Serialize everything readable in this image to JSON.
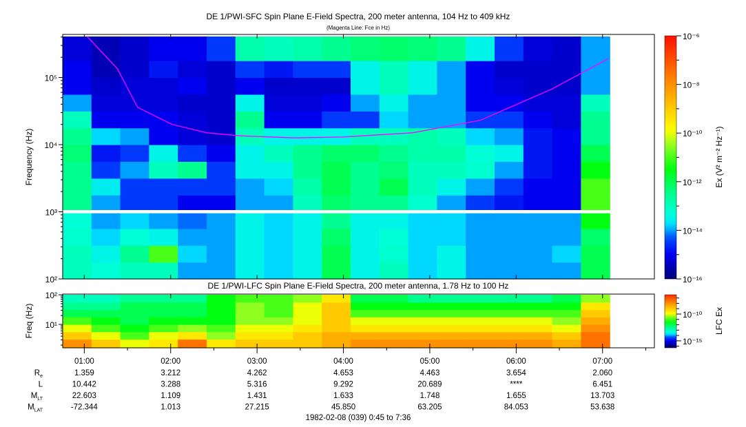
{
  "chart_data": [
    {
      "type": "heatmap",
      "title": "DE 1/PWI-SFC  Spin Plane E-Field Spectra, 200 meter antenna, 104 Hz to 409 kHz",
      "subtitle": "(Magenta Line: Fce in Hz)",
      "ylabel": "Frequency (Hz)",
      "yscale": "log",
      "ylim": [
        100,
        409000
      ],
      "y_tick_labels": [
        "10²",
        "10³",
        "10⁴",
        "10⁵"
      ],
      "y_ticks": [
        100,
        1000,
        10000,
        100000
      ],
      "data_gap_hz": [
        950,
        1060
      ],
      "xlim": [
        "0:45",
        "7:36"
      ],
      "time_bins_start": [
        "0:45",
        "1:05",
        "1:25",
        "1:45",
        "2:05",
        "2:25",
        "2:45",
        "3:05",
        "3:25",
        "3:45",
        "4:05",
        "4:25",
        "4:45",
        "5:05",
        "5:25",
        "5:45",
        "6:05",
        "6:25",
        "6:45"
      ],
      "time_bin_minutes": 20,
      "log10_freq_bin_edges": [
        2.0,
        2.25,
        2.5,
        2.75,
        3.0,
        3.25,
        3.5,
        3.75,
        4.0,
        4.25,
        4.5,
        4.75,
        5.0,
        5.25,
        5.61
      ],
      "log10_ex_values": [
        [
          -13,
          -13,
          -13.2,
          -13.3,
          -12.5,
          -12.5,
          -12.5,
          -12.3,
          -12.5,
          -13,
          -14,
          -15,
          -15,
          -15.2
        ],
        [
          -13.3,
          -13.5,
          -13.8,
          -14,
          -14,
          -13.6,
          -14.5,
          -14.8,
          -13.8,
          -15,
          -15.2,
          -15.3,
          -15.5,
          -15.5
        ],
        [
          -13,
          -12.5,
          -13.3,
          -13.8,
          -14.5,
          -14.5,
          -14,
          -14.5,
          -14,
          -15,
          -15.2,
          -15.2,
          -15.3,
          -15.3
        ],
        [
          -13,
          -11,
          -13.5,
          -14,
          -14.5,
          -14.5,
          -13,
          -13.5,
          -15,
          -15,
          -15.2,
          -15.2,
          -14.8,
          -15
        ],
        [
          -14,
          -13.8,
          -14,
          -14.2,
          -15,
          -14.5,
          -12.5,
          -14.5,
          -15.2,
          -15.2,
          -15.3,
          -15,
          -15.2,
          -15
        ],
        [
          -14,
          -14,
          -14,
          -14,
          -15,
          -14.5,
          -14.5,
          -15,
          -15.3,
          -15.3,
          -15.3,
          -15.3,
          -15.3,
          -14.5
        ],
        [
          -13.5,
          -13.5,
          -13.5,
          -13.5,
          -14,
          -14,
          -13.5,
          -13.5,
          -13,
          -12.5,
          -13.5,
          -15,
          -14.5,
          -12.8
        ],
        [
          -13.8,
          -13.8,
          -13.8,
          -13.8,
          -14,
          -13.8,
          -13.5,
          -13,
          -13.5,
          -15,
          -15.2,
          -15.3,
          -14.8,
          -13
        ],
        [
          -13.5,
          -13.5,
          -13.5,
          -13.5,
          -13,
          -12.8,
          -12.5,
          -12.5,
          -13.5,
          -15,
          -15.2,
          -15.3,
          -14.5,
          -12.8
        ],
        [
          -12,
          -12,
          -12.2,
          -12.5,
          -12.2,
          -12,
          -12,
          -12.2,
          -13.5,
          -14.5,
          -15,
          -15.3,
          -14.5,
          -12.5
        ],
        [
          -13.5,
          -13.5,
          -13.5,
          -13.5,
          -12.5,
          -12.5,
          -12.5,
          -12.2,
          -13,
          -14.5,
          -14,
          -13.5,
          -13.5,
          -12.3
        ],
        [
          -13,
          -13.2,
          -13.3,
          -13.5,
          -12.5,
          -12,
          -12.3,
          -12.5,
          -13,
          -13.8,
          -13.5,
          -13,
          -13,
          -12.2
        ],
        [
          -13.8,
          -13.8,
          -13.8,
          -13.8,
          -13.2,
          -13,
          -13,
          -12.8,
          -12.8,
          -14,
          -14,
          -13.5,
          -13.5,
          -12.3
        ],
        [
          -13.5,
          -13.5,
          -13.8,
          -13.8,
          -14,
          -13.5,
          -13,
          -12.8,
          -13,
          -14,
          -14,
          -14,
          -14,
          -12.5
        ],
        [
          -14,
          -14,
          -14,
          -14,
          -14.5,
          -14,
          -13.2,
          -13.3,
          -13.8,
          -14.5,
          -15,
          -15,
          -15,
          -13.5
        ],
        [
          -14,
          -14,
          -14,
          -14,
          -14.8,
          -14.5,
          -14,
          -13.5,
          -14,
          -14.5,
          -15,
          -15.2,
          -15.3,
          -14.5
        ],
        [
          -14,
          -14,
          -14,
          -14,
          -15,
          -15,
          -14.8,
          -14.8,
          -14.8,
          -15,
          -15.2,
          -15.3,
          -15.3,
          -15.2
        ],
        [
          -14,
          -13.8,
          -14,
          -14,
          -15,
          -15,
          -15,
          -15,
          -15,
          -15.2,
          -15.2,
          -15.3,
          -15.3,
          -15.3
        ],
        [
          -12,
          -12,
          -12.2,
          -11.5,
          -11,
          -11,
          -11.5,
          -12,
          -12.5,
          -12.5,
          -13,
          -14,
          -14,
          -14
        ]
      ],
      "fce_line": {
        "name": "Fce",
        "color": "#ff00ff",
        "points": [
          [
            "1:02",
            409000
          ],
          [
            "1:23",
            135000
          ],
          [
            "1:37",
            36000
          ],
          [
            "2:01",
            20000
          ],
          [
            "2:25",
            15000
          ],
          [
            "2:49",
            13500
          ],
          [
            "3:26",
            12600
          ],
          [
            "4:00",
            13000
          ],
          [
            "4:48",
            15000
          ],
          [
            "5:35",
            23000
          ],
          [
            "6:24",
            66000
          ],
          [
            "7:04",
            190000
          ]
        ]
      },
      "colorbar": {
        "label": "Ex (V² m⁻² Hz⁻¹)",
        "range_log10": [
          -16,
          -6
        ],
        "tick_labels": [
          "10⁻⁶",
          "10⁻⁸",
          "10⁻¹⁰",
          "10⁻¹²",
          "10⁻¹⁴",
          "10⁻¹⁶"
        ],
        "tick_values_log10": [
          -6,
          -8,
          -10,
          -12,
          -14,
          -16
        ]
      }
    },
    {
      "type": "heatmap",
      "title": "DE 1/PWI-LFC  Spin Plane E-Field Spectra, 200 meter antenna, 1.78 Hz to 100 Hz",
      "ylabel": "Freq (Hz)",
      "yscale": "log",
      "ylim": [
        1.6,
        100
      ],
      "y_tick_labels": [
        "10²",
        "10¹"
      ],
      "y_ticks": [
        100,
        10
      ],
      "log10_freq_bin_edges": [
        0.21,
        0.5,
        0.75,
        1.0,
        1.25,
        1.5,
        1.75,
        2.0
      ],
      "log10_ex_values": [
        [
          -8,
          -9,
          -10,
          -11,
          -12,
          -12.5,
          -13
        ],
        [
          -9,
          -10,
          -11,
          -11.5,
          -12,
          -12.5,
          -13
        ],
        [
          -10,
          -11,
          -11.5,
          -12,
          -12,
          -12,
          -12.5
        ],
        [
          -9.5,
          -10,
          -11,
          -11.5,
          -12,
          -12,
          -12.5
        ],
        [
          -7.5,
          -9.5,
          -10.5,
          -11.5,
          -12,
          -12,
          -12.5
        ],
        [
          -9.5,
          -10.5,
          -11,
          -11.5,
          -11.5,
          -11.5,
          -11.5
        ],
        [
          -9,
          -9.5,
          -10,
          -10.5,
          -10.5,
          -10.5,
          -11
        ],
        [
          -9,
          -9.5,
          -10,
          -10.5,
          -11,
          -11,
          -11
        ],
        [
          -9,
          -9,
          -9.5,
          -10,
          -10,
          -10,
          -10.5
        ],
        [
          -8.5,
          -8.5,
          -9,
          -9,
          -9,
          -9,
          -9.5
        ],
        [
          -8,
          -8.5,
          -9.5,
          -10,
          -11,
          -11.5,
          -12
        ],
        [
          -8,
          -8.5,
          -9.5,
          -10,
          -11,
          -11.5,
          -12
        ],
        [
          -8,
          -8.5,
          -9.5,
          -10,
          -11,
          -11.5,
          -12.5
        ],
        [
          -8,
          -8.5,
          -9.5,
          -10,
          -11,
          -11.5,
          -12.5
        ],
        [
          -8,
          -8.5,
          -9.5,
          -10,
          -11,
          -11.5,
          -12.5
        ],
        [
          -8,
          -8.5,
          -9.5,
          -10,
          -11,
          -11.5,
          -12.5
        ],
        [
          -8,
          -8.5,
          -9.5,
          -10,
          -11,
          -11.5,
          -12.5
        ],
        [
          -8.5,
          -9,
          -10,
          -10.5,
          -11,
          -11.5,
          -12
        ],
        [
          -7.5,
          -7.5,
          -8,
          -8.5,
          -9,
          -9.5,
          -10.5
        ]
      ],
      "colorbar": {
        "label": "LFC Ex",
        "range_log10": [
          -16.3,
          -6.4
        ],
        "tick_labels": [
          "10⁻¹⁰",
          "10⁻¹⁵"
        ],
        "tick_values_log10": [
          -10,
          -15
        ]
      }
    }
  ],
  "colormap": [
    [
      -16,
      "#00007a"
    ],
    [
      -15,
      "#0000f0"
    ],
    [
      -14.3,
      "#0050ff"
    ],
    [
      -13.8,
      "#00d8ff"
    ],
    [
      -13.4,
      "#00ffe0"
    ],
    [
      -12.5,
      "#00ff90"
    ],
    [
      -11.5,
      "#00ff10"
    ],
    [
      -10.5,
      "#90ff20"
    ],
    [
      -9.9,
      "#ffff00"
    ],
    [
      -8.8,
      "#ffc000"
    ],
    [
      -7.6,
      "#ff7800"
    ],
    [
      -6,
      "#ff1000"
    ]
  ],
  "time_axis": {
    "tick_labels": [
      "01:00",
      "02:00",
      "03:00",
      "04:00",
      "05:00",
      "06:00",
      "07:00"
    ],
    "start": "0:45",
    "end": "7:36"
  },
  "ephemeris": [
    {
      "label": "R",
      "sub": "e",
      "values": [
        "1.359",
        "3.212",
        "4.262",
        "4.653",
        "4.463",
        "3.654",
        "2.060"
      ]
    },
    {
      "label": "L",
      "sub": "",
      "values": [
        "10.442",
        "3.288",
        "5.316",
        "9.292",
        "20.689",
        "****",
        "6.451"
      ]
    },
    {
      "label": "M",
      "sub": "LT",
      "values": [
        "22.603",
        "1.109",
        "1.431",
        "1.633",
        "1.748",
        "1.655",
        "13.703"
      ]
    },
    {
      "label": "M",
      "sub": "LAT",
      "values": [
        "-72.344",
        "1.013",
        "27.215",
        "45.850",
        "63.205",
        "84.053",
        "53.638"
      ]
    }
  ],
  "date_label": "1982-02-08 (039) 0:45 to 7:36"
}
